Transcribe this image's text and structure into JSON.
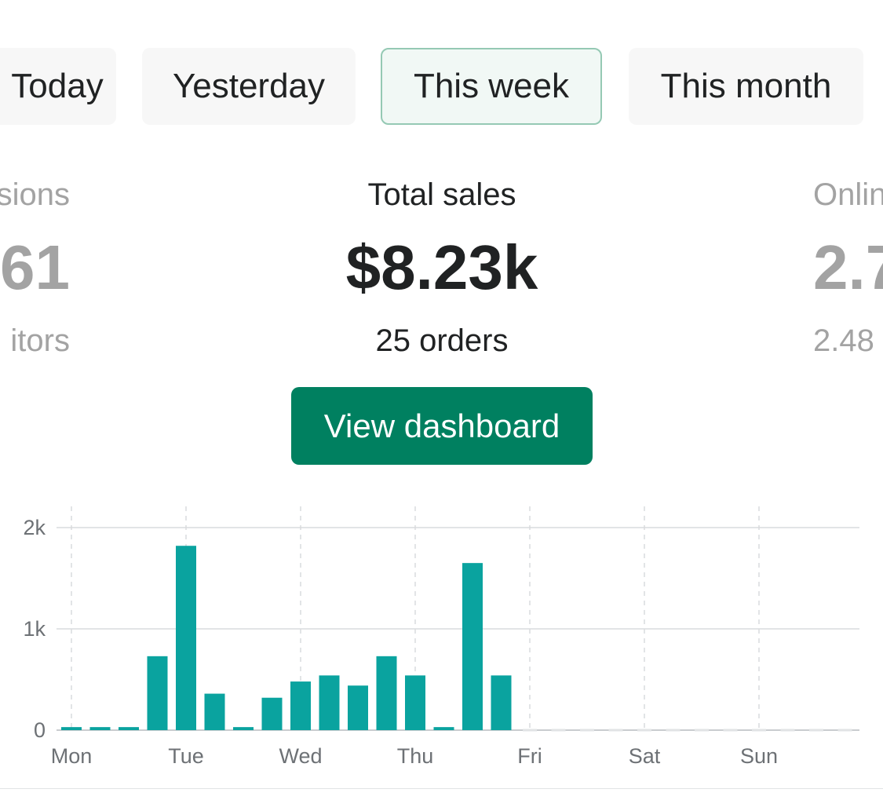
{
  "tabs": [
    {
      "label": "Today",
      "selected": false
    },
    {
      "label": "Yesterday",
      "selected": false
    },
    {
      "label": "This week",
      "selected": true
    },
    {
      "label": "This month",
      "selected": false
    }
  ],
  "metrics": {
    "left": {
      "label": "sions",
      "value": "61",
      "sub": "itors"
    },
    "center": {
      "label": "Total sales",
      "value": "$8.23k",
      "sub": "25 orders"
    },
    "right": {
      "label": "Onlin",
      "value": "2.7",
      "sub": "2.48"
    }
  },
  "cta": {
    "label": "View dashboard"
  },
  "colors": {
    "accent": "#008060",
    "bar": "#0aa39f",
    "selected_tab_border": "#95c9b4",
    "selected_tab_bg": "#f1f8f5"
  },
  "chart_data": {
    "type": "bar",
    "title": "",
    "xlabel": "",
    "ylabel": "",
    "ylim": [
      0,
      2200
    ],
    "yticks": [
      0,
      1000,
      2000
    ],
    "ytick_labels": [
      "0",
      "1k",
      "2k"
    ],
    "x_day_labels": [
      "Mon",
      "Tue",
      "Wed",
      "Thu",
      "Fri",
      "Sat",
      "Sun"
    ],
    "grid": true,
    "bars_per_day": 4,
    "values": [
      30,
      30,
      30,
      730,
      1820,
      360,
      30,
      320,
      480,
      540,
      440,
      730,
      540,
      30,
      1650,
      540,
      0,
      0,
      0,
      0,
      0,
      0,
      0,
      0,
      0,
      0,
      0,
      0
    ]
  }
}
